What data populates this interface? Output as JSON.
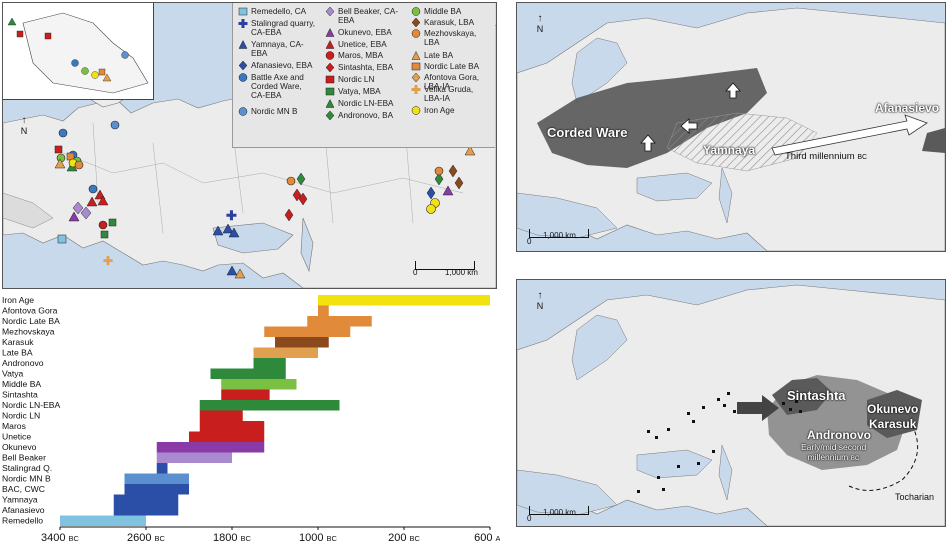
{
  "main_map": {
    "scale": {
      "zero": "0",
      "dist": "1,000 km"
    },
    "north": "N"
  },
  "legend": [
    {
      "label": "Remedello, CA",
      "shape": "square",
      "color": "#7fc3e0"
    },
    {
      "label": "Stalingrad quarry,\nCA-EBA",
      "shape": "cross",
      "color": "#2b3f9c"
    },
    {
      "label": "Yamnaya, CA-\nEBA",
      "shape": "triangle",
      "color": "#2b4ea6"
    },
    {
      "label": "Afanasievo, EBA",
      "shape": "diamond",
      "color": "#2b4ea6"
    },
    {
      "label": "Battle Axe and\nCorded Ware,\nCA-EBA",
      "shape": "circle",
      "color": "#3a78c2"
    },
    {
      "label": "Nordic MN B",
      "shape": "circle",
      "color": "#5b8fd0"
    },
    {
      "label": "Bell Beaker, CA-\nEBA",
      "shape": "diamond",
      "color": "#a98ad0"
    },
    {
      "label": "Okunevo, EBA",
      "shape": "triangle",
      "color": "#8a3aa6"
    },
    {
      "label": "Unetice, EBA",
      "shape": "triangle",
      "color": "#c81e1e"
    },
    {
      "label": "Maros, MBA",
      "shape": "circle",
      "color": "#c81e1e"
    },
    {
      "label": "Sintashta, EBA",
      "shape": "diamond",
      "color": "#c81e1e"
    },
    {
      "label": "Nordic LN",
      "shape": "square",
      "color": "#c81e1e"
    },
    {
      "label": "Vatya, MBA",
      "shape": "square",
      "color": "#2e8a3a"
    },
    {
      "label": "Nordic LN-EBA",
      "shape": "triangle",
      "color": "#2e8a3a"
    },
    {
      "label": "Andronovo, BA",
      "shape": "diamond",
      "color": "#2e8a3a"
    },
    {
      "label": "Middle BA",
      "shape": "circle",
      "color": "#7bc043"
    },
    {
      "label": "Karasuk, LBA",
      "shape": "diamond",
      "color": "#8a4a1e"
    },
    {
      "label": "Mezhovskaya,\nLBA",
      "shape": "circle",
      "color": "#e08a3a"
    },
    {
      "label": "Late BA",
      "shape": "triangle",
      "color": "#e0a050"
    },
    {
      "label": "Nordic Late BA",
      "shape": "square",
      "color": "#e08a3a"
    },
    {
      "label": "Afontova Gora,\nLBA-IA",
      "shape": "diamond",
      "color": "#e0a050"
    },
    {
      "label": "Velika Gruda,\nLBA-IA",
      "shape": "cross",
      "color": "#e0a050"
    },
    {
      "label": "Iron Age",
      "shape": "circle",
      "color": "#f2e20f"
    }
  ],
  "timeline": {
    "axis_labels": [
      {
        "num": "3400",
        "era": "BC"
      },
      {
        "num": "2600",
        "era": "BC"
      },
      {
        "num": "1800",
        "era": "BC"
      },
      {
        "num": "1000",
        "era": "BC"
      },
      {
        "num": "200",
        "era": "BC"
      },
      {
        "num": "600",
        "era": "AD"
      }
    ],
    "rows": [
      {
        "name": "Iron Age",
        "start": 1000,
        "end": -600,
        "color": "#f2e20f"
      },
      {
        "name": "Afontova Gora",
        "start": 1000,
        "end": 900,
        "color": "#e08a3a"
      },
      {
        "name": "Nordic Late BA",
        "start": 1100,
        "end": 500,
        "color": "#e08a3a"
      },
      {
        "name": "Mezhovskaya",
        "start": 1500,
        "end": 700,
        "color": "#e08a3a"
      },
      {
        "name": "Karasuk",
        "start": 1400,
        "end": 900,
        "color": "#8a4a1e"
      },
      {
        "name": "Late BA",
        "start": 1600,
        "end": 1000,
        "color": "#e0a050"
      },
      {
        "name": "Andronovo",
        "start": 1600,
        "end": 1300,
        "color": "#2e8a3a"
      },
      {
        "name": "Vatya",
        "start": 2000,
        "end": 1300,
        "color": "#2e8a3a"
      },
      {
        "name": "Middle BA",
        "start": 1900,
        "end": 1200,
        "color": "#7bc043"
      },
      {
        "name": "Sintashta",
        "start": 1900,
        "end": 1450,
        "color": "#c81e1e"
      },
      {
        "name": "Nordic LN-EBA",
        "start": 2100,
        "end": 800,
        "color": "#2e8a3a"
      },
      {
        "name": "Nordic LN",
        "start": 2100,
        "end": 1700,
        "color": "#c81e1e"
      },
      {
        "name": "Maros",
        "start": 2100,
        "end": 1500,
        "color": "#c81e1e"
      },
      {
        "name": "Unetice",
        "start": 2200,
        "end": 1500,
        "color": "#c81e1e"
      },
      {
        "name": "Okunevo",
        "start": 2500,
        "end": 1500,
        "color": "#8a3aa6"
      },
      {
        "name": "Bell Beaker",
        "start": 2500,
        "end": 1800,
        "color": "#a98ad0"
      },
      {
        "name": "Stalingrad Q.",
        "start": 2500,
        "end": 2400,
        "color": "#2b4ea6"
      },
      {
        "name": "Nordic MN B",
        "start": 2800,
        "end": 2200,
        "color": "#5b8fd0"
      },
      {
        "name": "BAC, CWC",
        "start": 2800,
        "end": 2200,
        "color": "#2b4ea6"
      },
      {
        "name": "Yamnaya",
        "start": 2900,
        "end": 2300,
        "color": "#2b4ea6"
      },
      {
        "name": "Afanasievo",
        "start": 2900,
        "end": 2300,
        "color": "#2b4ea6"
      },
      {
        "name": "Remedello",
        "start": 3400,
        "end": 2600,
        "color": "#7fc3e0"
      }
    ]
  },
  "top_right_map": {
    "north": "N",
    "labels": {
      "corded_ware": "Corded Ware",
      "yamnaya": "Yamnaya",
      "afanasievo": "Afanasievo",
      "third_millennium": "Third millennium",
      "third_millennium_era": "BC"
    },
    "scale": {
      "zero": "0",
      "dist": "1,000 km"
    }
  },
  "bottom_right_map": {
    "north": "N",
    "labels": {
      "sintashta": "Sintashta",
      "okunevo": "Okunevo",
      "karasuk": "Karasuk",
      "andronovo": "Andronovo",
      "early_mid_line1": "Early/mid second",
      "early_mid_line2": "millennium",
      "early_mid_era": "BC",
      "tocharian": "Tocharian"
    },
    "scale": {
      "zero": "0",
      "dist": "1,000 km"
    }
  },
  "colors": {
    "water": "#c9d9ec",
    "land": "#ececec",
    "spread_dark": "#5a5a5a"
  }
}
